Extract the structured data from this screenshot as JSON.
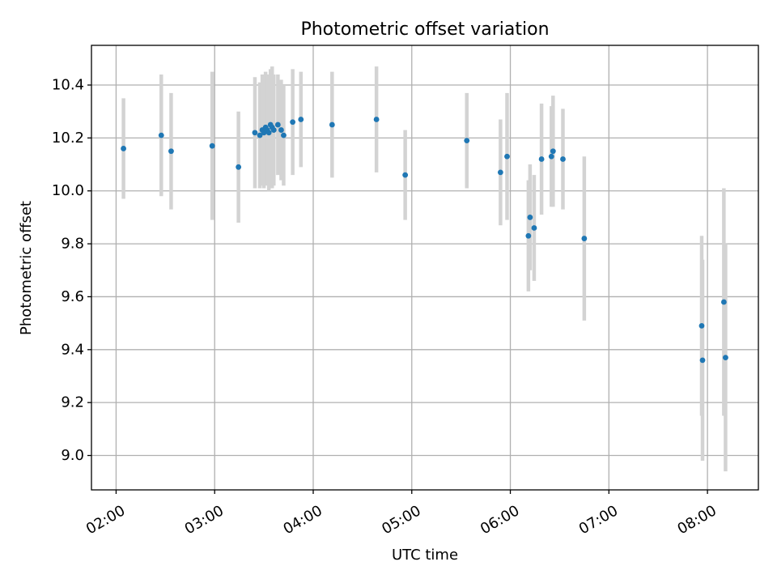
{
  "chart_data": {
    "type": "scatter",
    "title": "Photometric offset variation",
    "xlabel": "UTC time",
    "ylabel": "Photometric offset",
    "xlim": [
      "01:45",
      "08:31"
    ],
    "ylim": [
      8.87,
      10.55
    ],
    "grid": true,
    "x_ticks": [
      "02:00",
      "03:00",
      "04:00",
      "05:00",
      "06:00",
      "07:00",
      "08:00"
    ],
    "y_ticks": [
      "9.0",
      "9.2",
      "9.4",
      "9.6",
      "9.8",
      "10.0",
      "10.2",
      "10.4"
    ],
    "colors": {
      "point": "#1f77b4",
      "errorbar": "#d3d3d3",
      "grid": "#b0b0b0"
    },
    "series": [
      {
        "points": [
          {
            "x": "02:04:30",
            "y": 10.16,
            "yerr": 0.19
          },
          {
            "x": "02:27:30",
            "y": 10.21,
            "yerr": 0.23
          },
          {
            "x": "02:33:30",
            "y": 10.15,
            "yerr": 0.22
          },
          {
            "x": "02:58:30",
            "y": 10.17,
            "yerr": 0.28
          },
          {
            "x": "03:14:30",
            "y": 10.09,
            "yerr": 0.21
          },
          {
            "x": "03:24:30",
            "y": 10.22,
            "yerr": 0.21
          },
          {
            "x": "03:27:30",
            "y": 10.21,
            "yerr": 0.2
          },
          {
            "x": "03:29:00",
            "y": 10.23,
            "yerr": 0.21
          },
          {
            "x": "03:30:00",
            "y": 10.22,
            "yerr": 0.21
          },
          {
            "x": "03:31:00",
            "y": 10.24,
            "yerr": 0.21
          },
          {
            "x": "03:32:00",
            "y": 10.23,
            "yerr": 0.21
          },
          {
            "x": "03:33:00",
            "y": 10.22,
            "yerr": 0.22
          },
          {
            "x": "03:34:00",
            "y": 10.25,
            "yerr": 0.21
          },
          {
            "x": "03:35:00",
            "y": 10.24,
            "yerr": 0.23
          },
          {
            "x": "03:36:00",
            "y": 10.23,
            "yerr": 0.21
          },
          {
            "x": "03:38:30",
            "y": 10.25,
            "yerr": 0.19
          },
          {
            "x": "03:40:30",
            "y": 10.23,
            "yerr": 0.19
          },
          {
            "x": "03:42:00",
            "y": 10.21,
            "yerr": 0.19
          },
          {
            "x": "03:47:30",
            "y": 10.26,
            "yerr": 0.2
          },
          {
            "x": "03:52:30",
            "y": 10.27,
            "yerr": 0.18
          },
          {
            "x": "04:11:30",
            "y": 10.25,
            "yerr": 0.2
          },
          {
            "x": "04:38:30",
            "y": 10.27,
            "yerr": 0.2
          },
          {
            "x": "04:56:00",
            "y": 10.06,
            "yerr": 0.17
          },
          {
            "x": "05:33:30",
            "y": 10.19,
            "yerr": 0.18
          },
          {
            "x": "05:54:00",
            "y": 10.07,
            "yerr": 0.2
          },
          {
            "x": "05:58:00",
            "y": 10.13,
            "yerr": 0.24
          },
          {
            "x": "06:11:00",
            "y": 9.83,
            "yerr": 0.21
          },
          {
            "x": "06:12:00",
            "y": 9.9,
            "yerr": 0.2
          },
          {
            "x": "06:14:30",
            "y": 9.86,
            "yerr": 0.2
          },
          {
            "x": "06:19:00",
            "y": 10.12,
            "yerr": 0.21
          },
          {
            "x": "06:25:00",
            "y": 10.13,
            "yerr": 0.19
          },
          {
            "x": "06:26:00",
            "y": 10.15,
            "yerr": 0.21
          },
          {
            "x": "06:32:00",
            "y": 10.12,
            "yerr": 0.19
          },
          {
            "x": "06:45:00",
            "y": 9.82,
            "yerr": 0.31
          },
          {
            "x": "07:56:30",
            "y": 9.49,
            "yerr": 0.34
          },
          {
            "x": "07:57:00",
            "y": 9.36,
            "yerr": 0.38
          },
          {
            "x": "08:10:00",
            "y": 9.58,
            "yerr": 0.43
          },
          {
            "x": "08:11:00",
            "y": 9.37,
            "yerr": 0.43
          }
        ]
      }
    ]
  }
}
